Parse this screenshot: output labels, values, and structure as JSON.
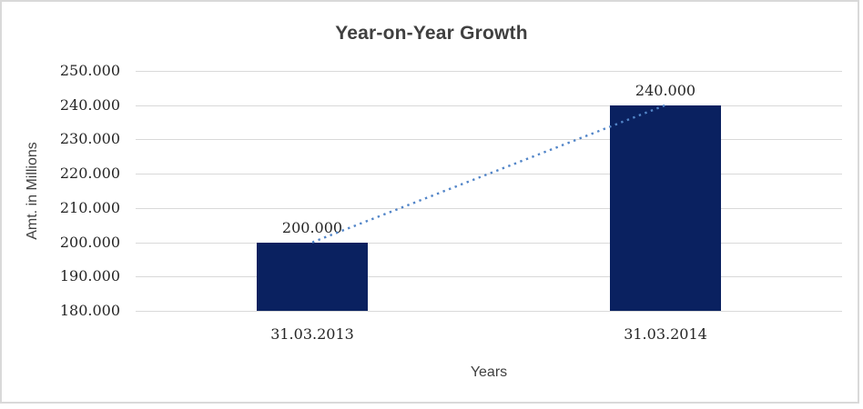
{
  "chart_data": {
    "type": "bar",
    "title": "Year-on-Year Growth",
    "xlabel": "Years",
    "ylabel": "Amt. in Millions",
    "categories": [
      "31.03.2013",
      "31.03.2014"
    ],
    "values": [
      200000,
      240000
    ],
    "data_labels": [
      "200.000",
      "240.000"
    ],
    "ylim": [
      180000,
      250000
    ],
    "yticks": [
      {
        "value": 250000,
        "label": "250.000"
      },
      {
        "value": 240000,
        "label": "240.000"
      },
      {
        "value": 230000,
        "label": "230.000"
      },
      {
        "value": 220000,
        "label": "220.000"
      },
      {
        "value": 210000,
        "label": "210.000"
      },
      {
        "value": 200000,
        "label": "200.000"
      },
      {
        "value": 190000,
        "label": "190.000"
      },
      {
        "value": 180000,
        "label": "180.000"
      }
    ],
    "grid": "horizontal",
    "legend": "none",
    "trendline": {
      "style": "dotted",
      "points": [
        [
          0,
          200000
        ],
        [
          1,
          240000
        ]
      ]
    },
    "colors": {
      "bar": "#0a2160",
      "trendline": "#5285c8",
      "gridline": "#d9d9d9",
      "panel_border": "#d9d9d9",
      "title_text": "#404040",
      "axis_title_text": "#404040",
      "tick_text": "#262626",
      "background": "#ffffff"
    }
  }
}
